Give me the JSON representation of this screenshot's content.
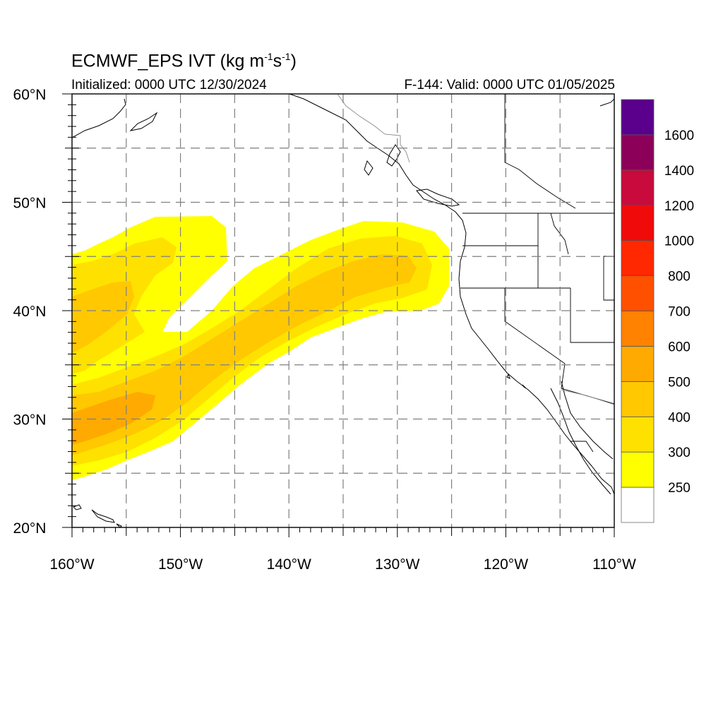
{
  "title": {
    "text": "ECMWF_EPS IVT (kg m",
    "sup1": "-1",
    "mid": "s",
    "sup2": "-1",
    "end": ")"
  },
  "initialized": "Initialized: 0000 UTC 12/30/2024",
  "valid": "F-144: Valid: 0000 UTC 01/05/2025",
  "map": {
    "lon_range": [
      -160,
      -110
    ],
    "lat_range": [
      20,
      60
    ],
    "lon_labels": [
      "160°W",
      "150°W",
      "140°W",
      "130°W",
      "120°W",
      "110°W"
    ],
    "lat_labels": [
      "60°N",
      "50°N",
      "40°N",
      "30°N",
      "20°N"
    ],
    "grid_spacing_deg": 5
  },
  "colorbar": {
    "labels": [
      "1600",
      "1400",
      "1200",
      "1000",
      "800",
      "700",
      "600",
      "500",
      "400",
      "300",
      "250"
    ],
    "colors": [
      "#ffffff",
      "#ffff00",
      "#ffe100",
      "#ffc800",
      "#ffaa00",
      "#ff8200",
      "#ff5000",
      "#ff2800",
      "#f00a0a",
      "#c80a3c",
      "#8c005a",
      "#5a008c"
    ]
  }
}
